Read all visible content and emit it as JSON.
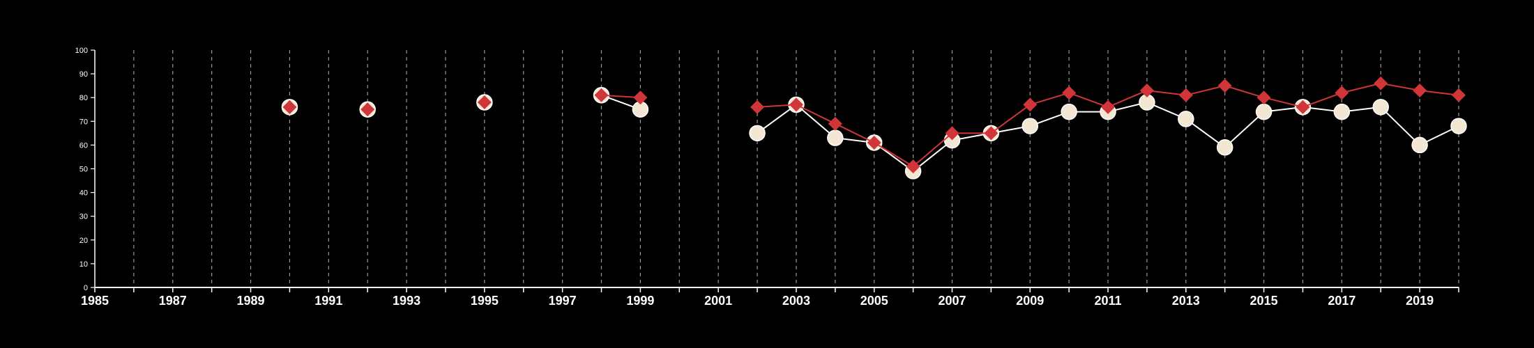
{
  "chart_data": {
    "type": "line",
    "title": "",
    "xlabel": "",
    "ylabel": "",
    "xlim": [
      1985,
      2020
    ],
    "ylim": [
      0,
      100
    ],
    "x_ticks": [
      "1985",
      "1987",
      "1989",
      "1991",
      "1993",
      "1995",
      "1997",
      "1999",
      "2001",
      "2003",
      "2005",
      "2007",
      "2009",
      "2011",
      "2013",
      "2015",
      "2017",
      "2019"
    ],
    "y_ticks": [
      "0",
      "10",
      "20",
      "30",
      "40",
      "50",
      "60",
      "70",
      "80",
      "90",
      "100"
    ],
    "grid": "vertical dashed lines at every year",
    "x": [
      1990,
      1992,
      1995,
      1998,
      1999,
      2002,
      2003,
      2004,
      2005,
      2006,
      2007,
      2008,
      2009,
      2010,
      2011,
      2012,
      2013,
      2014,
      2015,
      2016,
      2017,
      2018,
      2019,
      2020
    ],
    "series": [
      {
        "marker": "circle",
        "color": "#f3e6d3",
        "line_color": "#ffffff",
        "values": [
          76,
          75,
          78,
          81,
          75,
          65,
          77,
          63,
          61,
          49,
          62,
          65,
          68,
          74,
          74,
          78,
          71,
          59,
          74,
          76,
          74,
          76,
          60,
          68
        ]
      },
      {
        "marker": "diamond",
        "color": "#d0353a",
        "line_color": "#d0353a",
        "values": [
          76,
          75,
          78,
          81,
          80,
          76,
          77,
          69,
          61,
          51,
          65,
          65,
          77,
          82,
          76,
          83,
          81,
          85,
          80,
          76,
          82,
          86,
          83,
          81
        ]
      }
    ]
  }
}
